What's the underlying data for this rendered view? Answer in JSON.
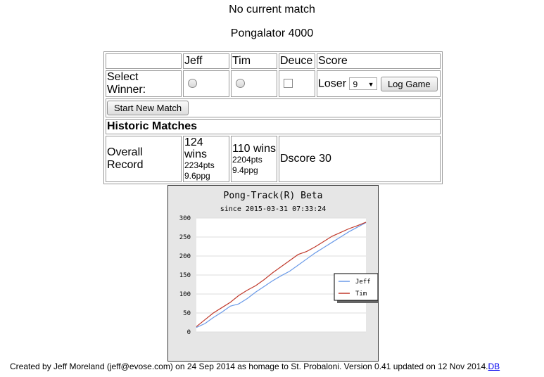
{
  "header": {
    "status": "No current match",
    "app_title": "Pongalator 4000"
  },
  "score_table": {
    "columns": [
      "",
      "Jeff",
      "Tim",
      "Deuce",
      "Score"
    ],
    "select_winner_label": "Select Winner:",
    "loser_label": "Loser",
    "loser_selected": "9",
    "log_game_label": "Log Game",
    "start_new_match_label": "Start New Match",
    "historic_title": "Historic Matches",
    "overall_record_label": "Overall Record",
    "players": [
      {
        "name": "Jeff",
        "wins": "124 wins",
        "pts": "2234pts",
        "ppg": "9.6ppg"
      },
      {
        "name": "Tim",
        "wins": "110 wins",
        "pts": "2204pts",
        "ppg": "9.4ppg"
      }
    ],
    "dscore": "Dscore 30"
  },
  "chart": {
    "title": "Pong-Track(R) Beta",
    "subtitle": "since 2015-03-31 07:33:24"
  },
  "chart_data": {
    "type": "line",
    "title": "Pong-Track(R) Beta",
    "subtitle": "since 2015-03-31 07:33:24",
    "xlabel": "",
    "ylabel": "",
    "ylim": [
      0,
      300
    ],
    "yticks": [
      0,
      50,
      100,
      150,
      200,
      250,
      300
    ],
    "grid": true,
    "legend": "right",
    "x": [
      0,
      5,
      10,
      15,
      20,
      25,
      30,
      35,
      40,
      45,
      50,
      55,
      60,
      65,
      70,
      75,
      80,
      85,
      90,
      95,
      100
    ],
    "series": [
      {
        "name": "Jeff",
        "color": "#6a9ae8",
        "values": [
          12,
          22,
          38,
          52,
          68,
          74,
          88,
          105,
          120,
          135,
          148,
          160,
          176,
          192,
          208,
          222,
          236,
          250,
          264,
          276,
          288
        ]
      },
      {
        "name": "Tim",
        "color": "#c0392b",
        "values": [
          14,
          32,
          50,
          64,
          78,
          96,
          110,
          122,
          138,
          156,
          172,
          188,
          204,
          212,
          224,
          238,
          252,
          262,
          272,
          280,
          289
        ]
      }
    ]
  },
  "footer": {
    "text": "Created by Jeff Moreland (jeff@evose.com) on 24 Sep 2014 as homage to St. Probaloni. Version 0.41 updated on 12 Nov 2014.",
    "link": "DB",
    "link_color": "#0000ee"
  }
}
